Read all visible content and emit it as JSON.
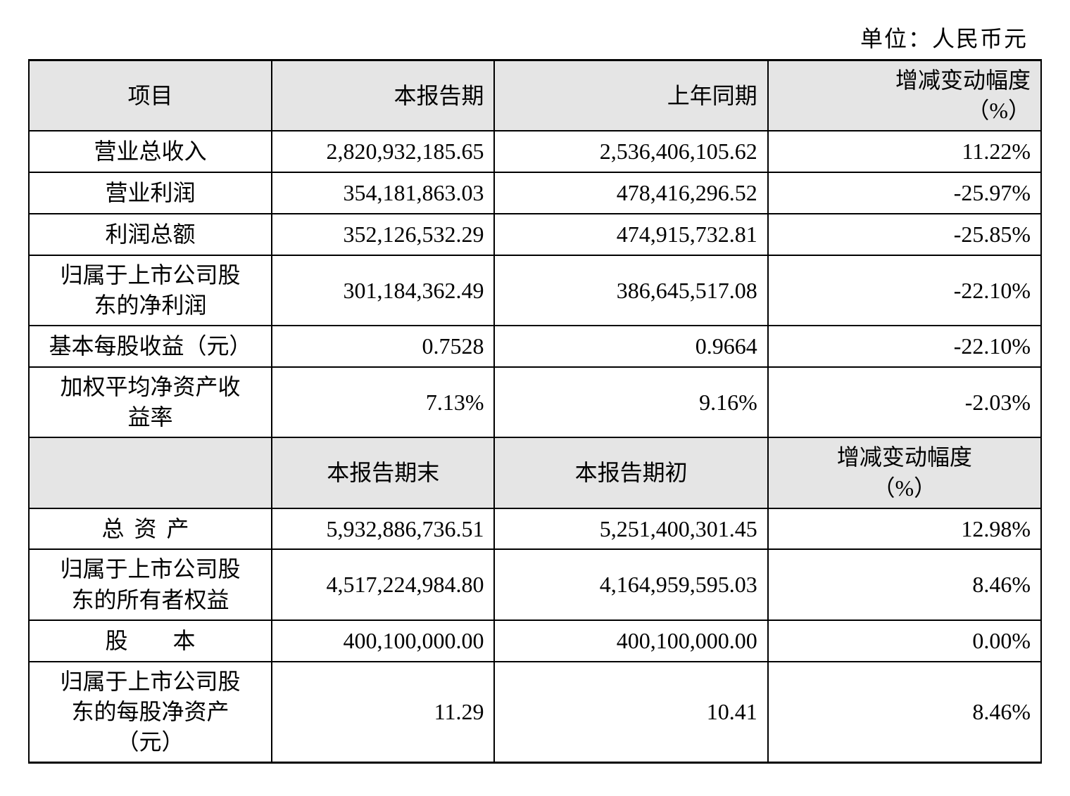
{
  "unit_label": "单位：人民币元",
  "table": {
    "header1": {
      "col1": "项目",
      "col2": "本报告期",
      "col3": "上年同期",
      "col4": "增减变动幅度（%）"
    },
    "rows1": [
      {
        "item": "营业总收入",
        "v1": "2,820,932,185.65",
        "v2": "2,536,406,105.62",
        "v3": "11.22%"
      },
      {
        "item": "营业利润",
        "v1": "354,181,863.03",
        "v2": "478,416,296.52",
        "v3": "-25.97%"
      },
      {
        "item": "利润总额",
        "v1": "352,126,532.29",
        "v2": "474,915,732.81",
        "v3": "-25.85%"
      },
      {
        "item": "归属于上市公司股东的净利润",
        "v1": "301,184,362.49",
        "v2": "386,645,517.08",
        "v3": "-22.10%"
      },
      {
        "item": "基本每股收益（元）",
        "v1": "0.7528",
        "v2": "0.9664",
        "v3": "-22.10%"
      },
      {
        "item": "加权平均净资产收益率",
        "v1": "7.13%",
        "v2": "9.16%",
        "v3": "-2.03%"
      }
    ],
    "header2": {
      "col1": "",
      "col2": "本报告期末",
      "col3": "本报告期初",
      "col4": "增减变动幅度（%）"
    },
    "rows2": [
      {
        "item": "总 资 产",
        "v1": "5,932,886,736.51",
        "v2": "5,251,400,301.45",
        "v3": "12.98%"
      },
      {
        "item": "归属于上市公司股东的所有者权益",
        "v1": "4,517,224,984.80",
        "v2": "4,164,959,595.03",
        "v3": "8.46%"
      },
      {
        "item": "股    本",
        "v1": "400,100,000.00",
        "v2": "400,100,000.00",
        "v3": "0.00%"
      },
      {
        "item": "归属于上市公司股东的每股净资产（元）",
        "v1": "11.29",
        "v2": "10.41",
        "v3": "8.46%"
      }
    ]
  },
  "styling": {
    "background_color": "#ffffff",
    "header_bg_color": "#e5e5e5",
    "border_color": "#000000",
    "text_color": "#000000",
    "font_family": "SimSun",
    "base_fontsize": 32,
    "outer_border_width": 3,
    "inner_border_width": 2,
    "col_widths_pct": [
      24,
      22,
      27,
      27
    ]
  }
}
